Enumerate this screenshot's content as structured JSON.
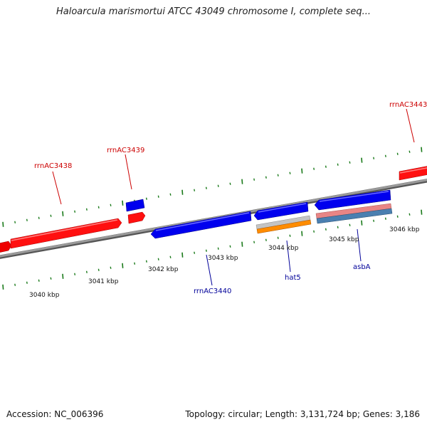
{
  "header": {
    "title": "Haloarcula marismortui ATCC 43049 chromosome I, complete seq..."
  },
  "footer": {
    "accession": "Accession: NC_006396",
    "summary": "Topology: circular; Length: 3,131,724 bp; Genes: 3,186"
  },
  "colors": {
    "forward_gene": "#ff0000",
    "reverse_gene": "#0000ee",
    "forward_label": "#cc0000",
    "reverse_label": "#000099",
    "backbone": "#808080",
    "ticks": "#1a7a1a",
    "orange_feature": "#ff8c00",
    "pink_feature": "#e88080",
    "steel_feature": "#4a7fb0",
    "grey_feature": "#c0c0c0"
  },
  "axis": {
    "ticks_kbp": [
      "3040 kbp",
      "3041 kbp",
      "3042 kbp",
      "3043 kbp",
      "3044 kbp",
      "3045 kbp",
      "3046 kbp"
    ]
  },
  "gene_labels": {
    "rrnAC3438": "rrnAC3438",
    "rrnAC3439": "rrnAC3439",
    "rrnAC3443": "rrnAC3443",
    "rrnAC3440": "rrnAC3440",
    "hat5": "hat5",
    "asbA": "asbA"
  }
}
